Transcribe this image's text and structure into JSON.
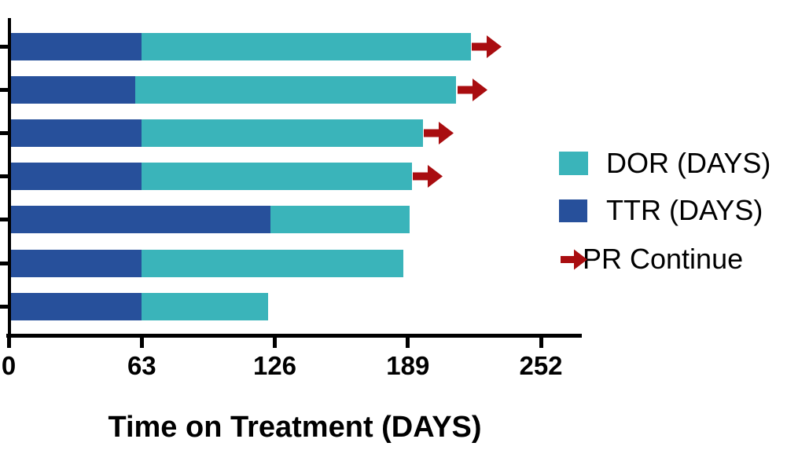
{
  "chart_data": {
    "type": "stacked_bar_horizontal",
    "xlabel": "Time on Treatment (DAYS)",
    "x_ticks": [
      0,
      63,
      126,
      189,
      252
    ],
    "x_axis_max_extent_days": 271,
    "series": [
      {
        "name": "TTR (DAYS)",
        "color": "#27509B"
      },
      {
        "name": "DOR (DAYS)",
        "color": "#3AB4BA"
      }
    ],
    "bars": [
      {
        "ttr_days": 63,
        "dor_days": 156,
        "total_days": 219,
        "pr_continue": true
      },
      {
        "ttr_days": 60,
        "dor_days": 152,
        "total_days": 212,
        "pr_continue": true
      },
      {
        "ttr_days": 63,
        "dor_days": 133,
        "total_days": 196,
        "pr_continue": true
      },
      {
        "ttr_days": 63,
        "dor_days": 128,
        "total_days": 191,
        "pr_continue": true
      },
      {
        "ttr_days": 124,
        "dor_days": 66,
        "total_days": 190,
        "pr_continue": false
      },
      {
        "ttr_days": 63,
        "dor_days": 124,
        "total_days": 187,
        "pr_continue": false
      },
      {
        "ttr_days": 63,
        "dor_days": 60,
        "total_days": 123,
        "pr_continue": false
      }
    ],
    "legend": {
      "dor_label": "DOR (DAYS)",
      "ttr_label": "TTR (DAYS)",
      "pr_label": "PR Continue"
    },
    "colors": {
      "dor": "#3AB4BA",
      "ttr": "#27509B",
      "pr_arrow": "#A90D10",
      "axis": "#000000"
    }
  }
}
